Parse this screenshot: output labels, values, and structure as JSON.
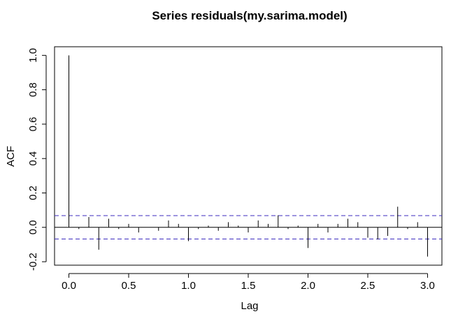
{
  "chart_data": {
    "type": "bar",
    "title": "Series  residuals(my.sarima.model)",
    "xlabel": "Lag",
    "ylabel": "ACF",
    "xlim": [
      -0.12,
      3.12
    ],
    "ylim": [
      -0.22,
      1.05
    ],
    "x_ticks": [
      0.0,
      0.5,
      1.0,
      1.5,
      2.0,
      2.5,
      3.0
    ],
    "x_tick_labels": [
      "0.0",
      "0.5",
      "1.0",
      "1.5",
      "2.0",
      "2.5",
      "3.0"
    ],
    "y_ticks": [
      -0.2,
      0.0,
      0.2,
      0.4,
      0.6,
      0.8,
      1.0
    ],
    "y_tick_labels": [
      "-0.2",
      "0.0",
      "0.2",
      "0.4",
      "0.6",
      "0.8",
      "1.0"
    ],
    "confidence_bound": 0.068,
    "confidence_color": "#3b2bbf",
    "lags": [
      0.0,
      0.0833,
      0.1667,
      0.25,
      0.3333,
      0.4167,
      0.5,
      0.5833,
      0.6667,
      0.75,
      0.8333,
      0.9167,
      1.0,
      1.0833,
      1.1667,
      1.25,
      1.3333,
      1.4167,
      1.5,
      1.5833,
      1.6667,
      1.75,
      1.8333,
      1.9167,
      2.0,
      2.0833,
      2.1667,
      2.25,
      2.3333,
      2.4167,
      2.5,
      2.5833,
      2.6667,
      2.75,
      2.8333,
      2.9167,
      3.0
    ],
    "values": [
      1.0,
      -0.01,
      0.06,
      -0.13,
      0.05,
      -0.01,
      0.02,
      -0.03,
      0.0,
      -0.02,
      0.04,
      0.02,
      -0.08,
      -0.01,
      0.01,
      -0.02,
      0.03,
      0.01,
      -0.03,
      0.04,
      0.02,
      0.07,
      -0.01,
      0.01,
      -0.12,
      0.02,
      -0.03,
      0.02,
      0.05,
      0.03,
      -0.06,
      -0.07,
      -0.05,
      0.12,
      -0.01,
      0.03,
      -0.17
    ]
  }
}
